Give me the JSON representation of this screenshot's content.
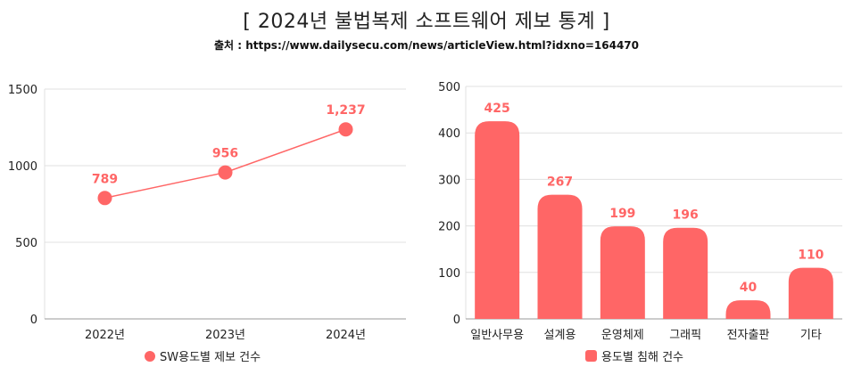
{
  "header": {
    "title": "[ 2024년 불법복제 소프트웨어 제보 통계 ]",
    "source": "출처 : https://www.dailysecu.com/news/articleView.html?idxno=164470"
  },
  "colors": {
    "accent": "#ff6666",
    "grid": "#e0e0e0",
    "axis": "#999999"
  },
  "chart_data": [
    {
      "type": "line",
      "categories": [
        "2022년",
        "2023년",
        "2024년"
      ],
      "series": [
        {
          "name": "SW용도별 제보 건수",
          "values": [
            789,
            956,
            1237
          ]
        }
      ],
      "data_labels": [
        "789",
        "956",
        "1,237"
      ],
      "yticks": [
        "0",
        "500",
        "1000",
        "1500"
      ],
      "ylim": [
        0,
        1500
      ],
      "grid": true,
      "legend": "bottom"
    },
    {
      "type": "bar",
      "categories": [
        "일반사무용",
        "설계용",
        "운영체제",
        "그래픽",
        "전자출판",
        "기타"
      ],
      "series": [
        {
          "name": "용도별 침해 건수",
          "values": [
            425,
            267,
            199,
            196,
            40,
            110
          ]
        }
      ],
      "data_labels": [
        "425",
        "267",
        "199",
        "196",
        "40",
        "110"
      ],
      "yticks": [
        "0",
        "100",
        "200",
        "300",
        "400",
        "500"
      ],
      "ylim": [
        0,
        500
      ],
      "grid": true,
      "legend": "bottom"
    }
  ]
}
